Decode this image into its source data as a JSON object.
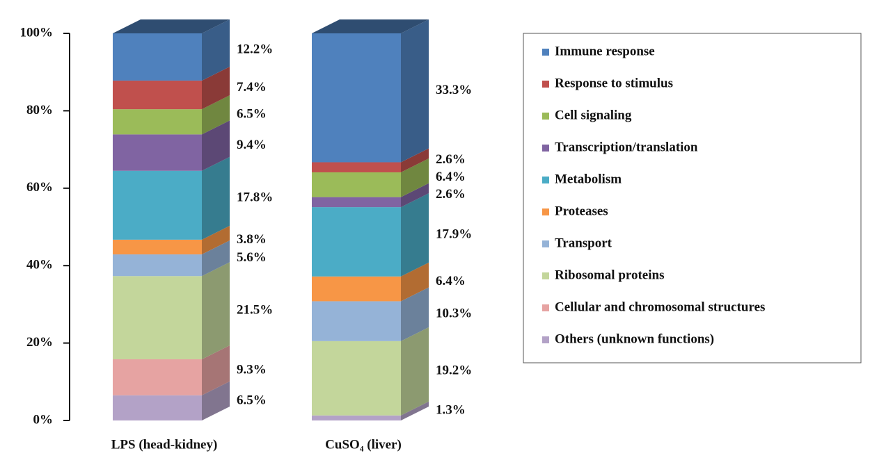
{
  "chart_data": {
    "type": "stacked_bar_3d",
    "categories": [
      "LPS (head-kidney)",
      "CuSO₄ (liver)"
    ],
    "series": [
      {
        "name": "Immune response",
        "color": "#4f81bd",
        "values": [
          12.2,
          33.3
        ],
        "value_labels": [
          "12.2%",
          "33.3%"
        ]
      },
      {
        "name": "Response to stimulus",
        "color": "#c0504d",
        "values": [
          7.4,
          2.6
        ],
        "value_labels": [
          "7.4%",
          "2.6%"
        ]
      },
      {
        "name": "Cell signaling",
        "color": "#9bbb59",
        "values": [
          6.5,
          6.4
        ],
        "value_labels": [
          "6.5%",
          "6.4%"
        ]
      },
      {
        "name": "Transcription/translation",
        "color": "#8064a2",
        "values": [
          9.4,
          2.6
        ],
        "value_labels": [
          "9.4%",
          "2.6%"
        ]
      },
      {
        "name": "Metabolism",
        "color": "#4bacc6",
        "values": [
          17.8,
          17.9
        ],
        "value_labels": [
          "17.8%",
          "17.9%"
        ]
      },
      {
        "name": "Proteases",
        "color": "#f79646",
        "values": [
          3.8,
          6.4
        ],
        "value_labels": [
          "3.8%",
          "6.4%"
        ]
      },
      {
        "name": "Transport",
        "color": "#95b3d7",
        "values": [
          5.6,
          10.3
        ],
        "value_labels": [
          "5.6%",
          "10.3%"
        ]
      },
      {
        "name": "Ribosomal proteins",
        "color": "#c3d69b",
        "values": [
          21.5,
          19.2
        ],
        "value_labels": [
          "21.5%",
          "19.2%"
        ]
      },
      {
        "name": "Cellular and chromosomal structures",
        "color": "#e6a3a2",
        "values": [
          9.3,
          null
        ],
        "value_labels": [
          "9.3%",
          null
        ]
      },
      {
        "name": "Others (unknown functions)",
        "color": "#b3a2c7",
        "values": [
          6.5,
          1.3
        ],
        "value_labels": [
          "6.5%",
          "1.3%"
        ]
      }
    ],
    "ylim": [
      0,
      100
    ],
    "yticks": [
      {
        "value": 0,
        "label": "0%"
      },
      {
        "value": 20,
        "label": "20%"
      },
      {
        "value": 40,
        "label": "40%"
      },
      {
        "value": 60,
        "label": "60%"
      },
      {
        "value": 80,
        "label": "80%"
      },
      {
        "value": 100,
        "label": "100%"
      }
    ],
    "legend": "right"
  }
}
